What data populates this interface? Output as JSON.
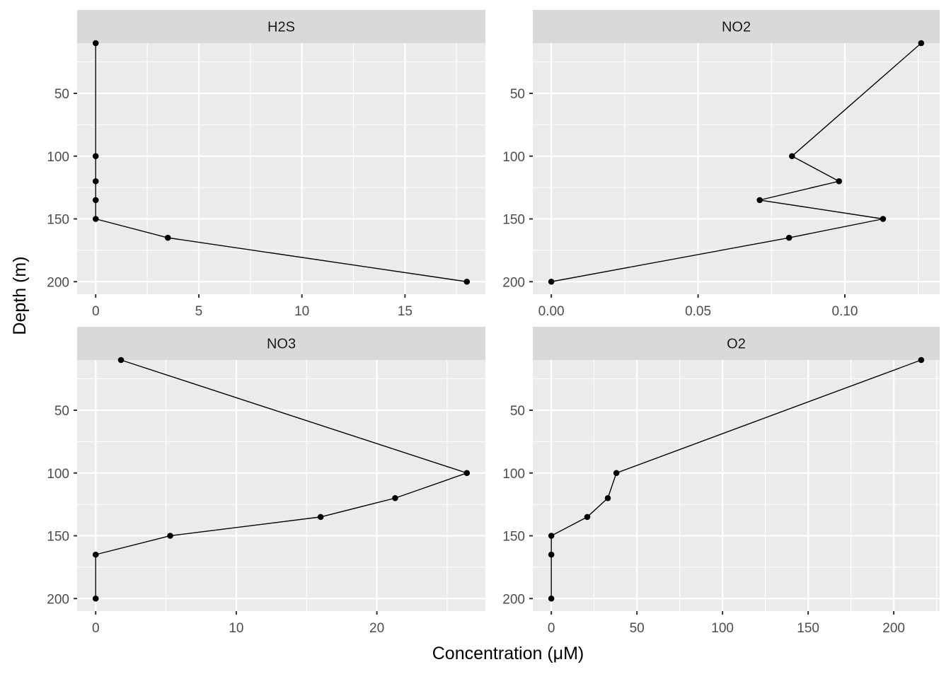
{
  "chart_data": {
    "type": "line",
    "xlabel": "Concentration (μM)",
    "ylabel": "Depth (m)",
    "y_reversed": true,
    "ylim": [
      210,
      10
    ],
    "y_ticks": [
      50,
      100,
      150,
      200
    ],
    "grid": true,
    "facets": [
      {
        "name": "H2S",
        "xlim": [
          -0.9,
          18.9
        ],
        "x_ticks": [
          0,
          5,
          10,
          15
        ],
        "x_tick_labels": [
          "0",
          "5",
          "10",
          "15"
        ],
        "x_minor": [
          2.5,
          7.5,
          12.5,
          17.5
        ],
        "points": [
          {
            "x": 0,
            "y": 10
          },
          {
            "x": 0,
            "y": 100
          },
          {
            "x": 0,
            "y": 120
          },
          {
            "x": 0,
            "y": 135
          },
          {
            "x": 0,
            "y": 150
          },
          {
            "x": 3.5,
            "y": 165
          },
          {
            "x": 18,
            "y": 200
          }
        ]
      },
      {
        "name": "NO2",
        "xlim": [
          -0.0063,
          0.1323
        ],
        "x_ticks": [
          0,
          0.05,
          0.1
        ],
        "x_tick_labels": [
          "0.00",
          "0.05",
          "0.10"
        ],
        "x_minor": [
          0.025,
          0.075,
          0.125
        ],
        "points": [
          {
            "x": 0.126,
            "y": 10
          },
          {
            "x": 0.082,
            "y": 100
          },
          {
            "x": 0.098,
            "y": 120
          },
          {
            "x": 0.071,
            "y": 135
          },
          {
            "x": 0.113,
            "y": 150
          },
          {
            "x": 0.081,
            "y": 165
          },
          {
            "x": 0,
            "y": 200
          }
        ]
      },
      {
        "name": "NO3",
        "xlim": [
          -1.32,
          27.72
        ],
        "x_ticks": [
          0,
          10,
          20
        ],
        "x_tick_labels": [
          "0",
          "10",
          "20"
        ],
        "x_minor": [
          5,
          15,
          25
        ],
        "points": [
          {
            "x": 1.8,
            "y": 10
          },
          {
            "x": 26.4,
            "y": 100
          },
          {
            "x": 21.3,
            "y": 120
          },
          {
            "x": 16,
            "y": 135
          },
          {
            "x": 5.3,
            "y": 150
          },
          {
            "x": 0,
            "y": 165
          },
          {
            "x": 0,
            "y": 200
          }
        ]
      },
      {
        "name": "O2",
        "xlim": [
          -10.8,
          226.8
        ],
        "x_ticks": [
          0,
          50,
          100,
          150,
          200
        ],
        "x_tick_labels": [
          "0",
          "50",
          "100",
          "150",
          "200"
        ],
        "x_minor": [
          25,
          75,
          125,
          175,
          225
        ],
        "points": [
          {
            "x": 216,
            "y": 10
          },
          {
            "x": 38,
            "y": 100
          },
          {
            "x": 33,
            "y": 120
          },
          {
            "x": 21,
            "y": 135
          },
          {
            "x": 0,
            "y": 150
          },
          {
            "x": 0,
            "y": 165
          },
          {
            "x": 0,
            "y": 200
          }
        ]
      }
    ]
  }
}
